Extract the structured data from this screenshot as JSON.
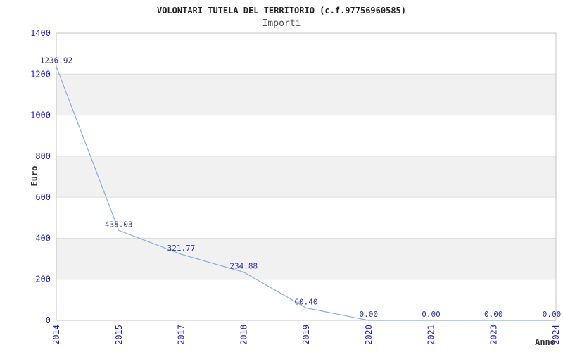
{
  "chart_data": {
    "type": "line",
    "title": "VOLONTARI TUTELA DEL TERRITORIO (c.f.97756960585)",
    "subtitle": "Importi",
    "xlabel": "Anno",
    "ylabel": "Euro",
    "categories": [
      "2014",
      "2015",
      "2017",
      "2018",
      "2019",
      "2020",
      "2021",
      "2023",
      "2024"
    ],
    "values": [
      1236.92,
      438.03,
      321.77,
      234.88,
      60.4,
      0.0,
      0.0,
      0.0,
      0.0
    ],
    "value_labels": [
      "1236.92",
      "438.03",
      "321.77",
      "234.88",
      "60.40",
      "0.00",
      "0.00",
      "0.00",
      "0.00"
    ],
    "ylim": [
      0,
      1400
    ],
    "ytick_step": 200,
    "yticks": [
      0,
      200,
      400,
      600,
      800,
      1000,
      1200,
      1400
    ],
    "grid": true,
    "legend": "none",
    "band_pattern": "alternating horizontal bands between gridlines",
    "colors": {
      "line": "#85afe2",
      "tick_label": "#2222cc",
      "value_label": "#333399",
      "band": "#f1f1f1",
      "grid": "#dcdcdc",
      "frame": "#c4c4c4",
      "title": "#222222",
      "subtitle": "#555555",
      "axis_title": "#333333",
      "background": "#ffffff"
    }
  }
}
